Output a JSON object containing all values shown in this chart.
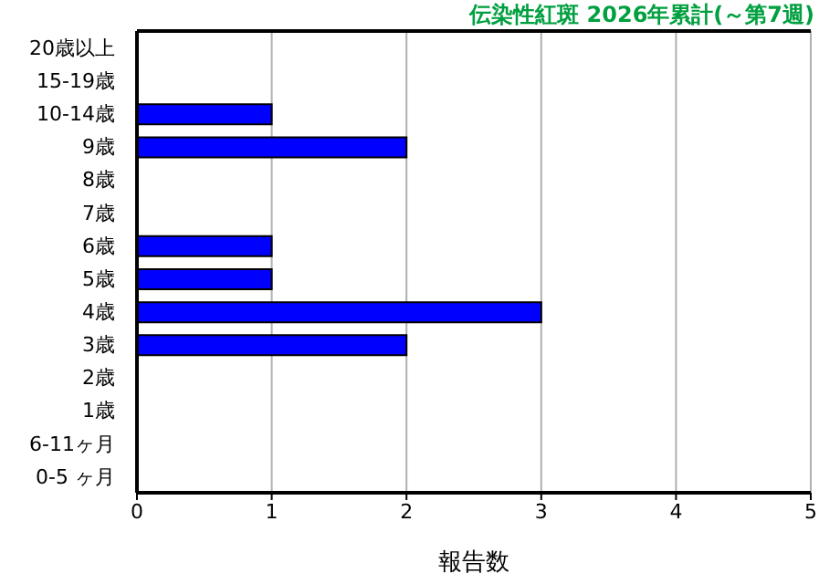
{
  "chart_data": {
    "type": "bar",
    "orientation": "horizontal",
    "title": "伝染性紅斑 2026年累計(～第7週)",
    "xlabel": "報告数",
    "categories": [
      "20歳以上",
      "15-19歳",
      "10-14歳",
      "9歳",
      "8歳",
      "7歳",
      "6歳",
      "5歳",
      "4歳",
      "3歳",
      "2歳",
      "1歳",
      "6-11ヶ月",
      "0-5 ヶ月"
    ],
    "values": [
      0,
      0,
      1,
      2,
      0,
      0,
      1,
      1,
      3,
      2,
      0,
      0,
      0,
      0
    ],
    "color": "#0000ff",
    "xlim": [
      0,
      5
    ],
    "xticks": [
      0,
      1,
      2,
      3,
      4,
      5
    ],
    "grid": "x"
  }
}
